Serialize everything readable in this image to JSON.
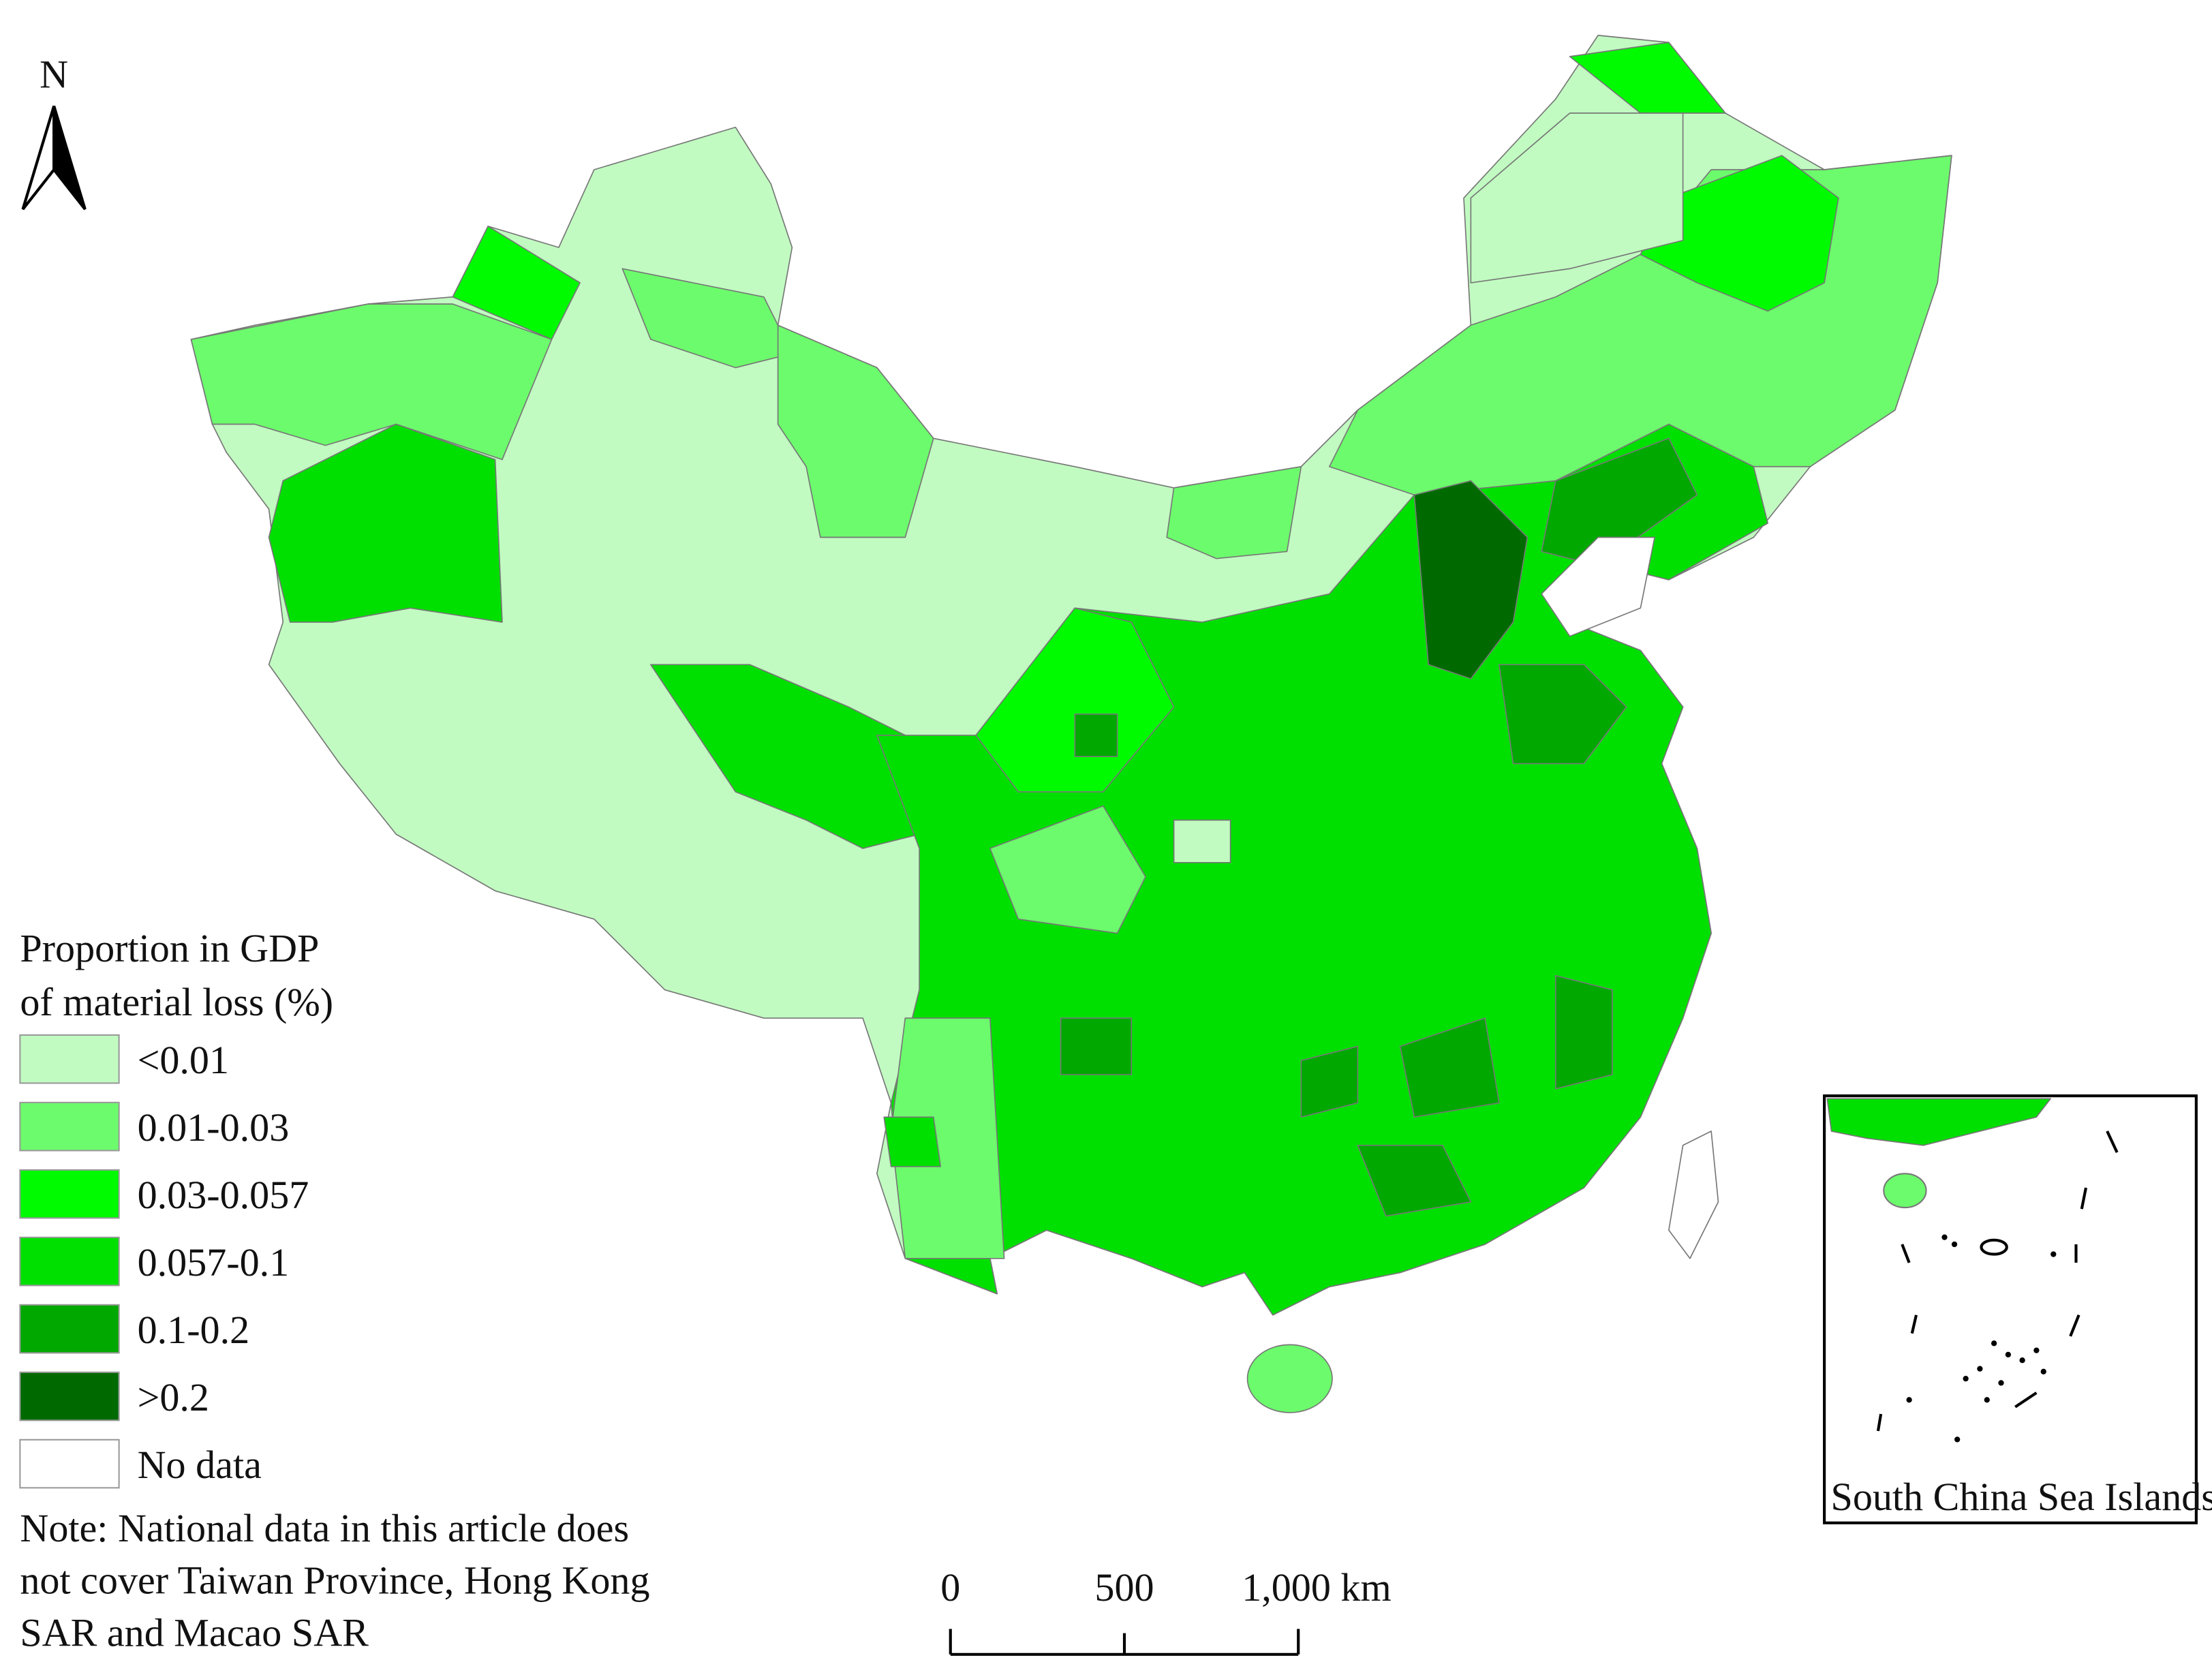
{
  "north_arrow": {
    "label": "N"
  },
  "legend": {
    "title_lines": [
      "Proportion in GDP",
      "of material loss (%)"
    ],
    "items": [
      {
        "label": "<0.01",
        "color": "#c1fbc1"
      },
      {
        "label": "0.01-0.03",
        "color": "#6cfb6c"
      },
      {
        "label": "0.03-0.057",
        "color": "#00fb00"
      },
      {
        "label": "0.057-0.1",
        "color": "#00e000"
      },
      {
        "label": "0.1-0.2",
        "color": "#00a800"
      },
      {
        "label": ">0.2",
        "color": "#006a00"
      },
      {
        "label": "No data",
        "color": "#ffffff"
      }
    ]
  },
  "note_lines": [
    "Note: National data in this article does",
    "not cover Taiwan Province, Hong Kong",
    "SAR and Macao SAR"
  ],
  "scale_bar": {
    "labels": [
      "0",
      "500",
      "1,000 km"
    ]
  },
  "inset": {
    "label": "South China Sea Islands"
  }
}
